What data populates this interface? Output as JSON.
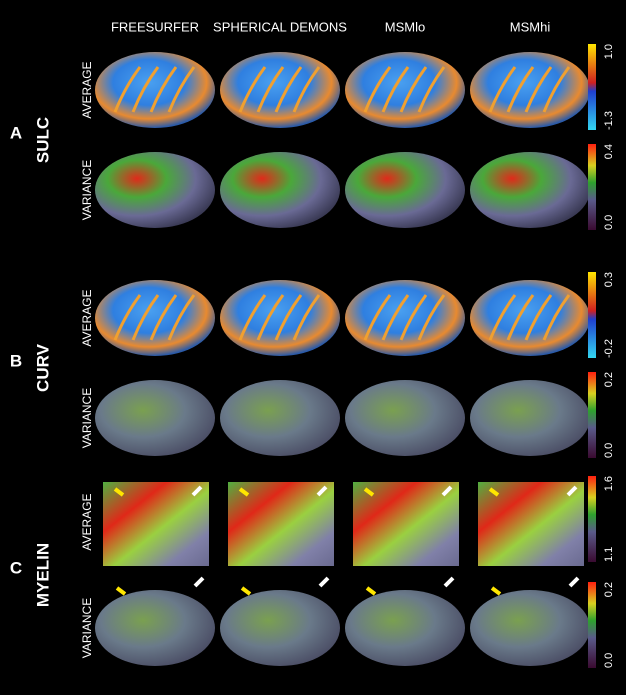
{
  "columns": [
    "FREESURFER",
    "SPHERICAL DEMONS",
    "MSMlo",
    "MSMhi"
  ],
  "sections": [
    {
      "label": "A",
      "measure": "SULC",
      "rows": [
        {
          "label": "AVERAGE",
          "scale": {
            "max": "1.0",
            "min": "-1.3"
          }
        },
        {
          "label": "VARIANCE",
          "scale": {
            "max": "0.4",
            "min": "0.0"
          }
        }
      ]
    },
    {
      "label": "B",
      "measure": "CURV",
      "rows": [
        {
          "label": "AVERAGE",
          "scale": {
            "max": "0.3",
            "min": "-0.2"
          }
        },
        {
          "label": "VARIANCE",
          "scale": {
            "max": "0.2",
            "min": "0.0"
          }
        }
      ]
    },
    {
      "label": "C",
      "measure": "MYELIN",
      "rows": [
        {
          "label": "AVERAGE",
          "scale": {
            "max": "1.6",
            "min": "1.1"
          }
        },
        {
          "label": "VARIANCE",
          "scale": {
            "max": "0.2",
            "min": "0.0"
          }
        }
      ]
    }
  ]
}
